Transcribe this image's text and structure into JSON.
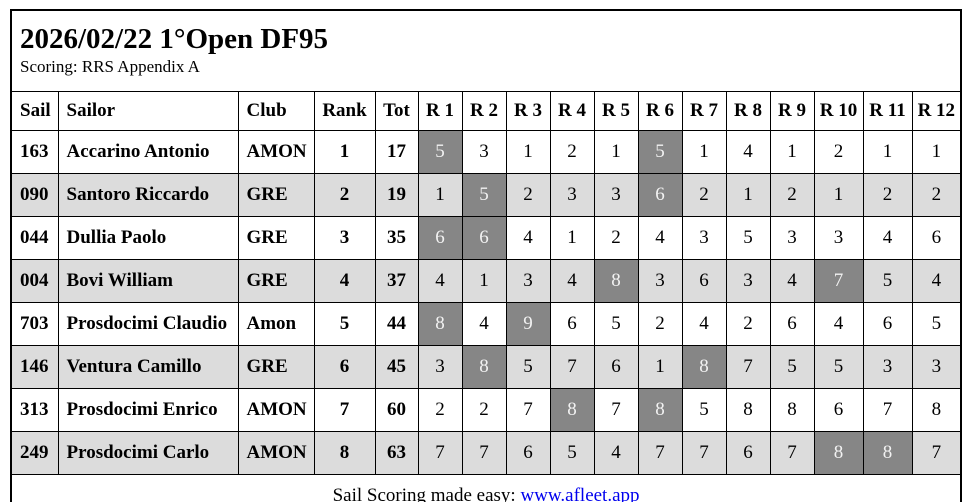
{
  "header": {
    "title": "2026/02/22 1°Open DF95",
    "subtitle": "Scoring: RRS Appendix A"
  },
  "table": {
    "columns": [
      "Sail",
      "Sailor",
      "Club",
      "Rank",
      "Tot",
      "R 1",
      "R 2",
      "R 3",
      "R 4",
      "R 5",
      "R 6",
      "R 7",
      "R 8",
      "R 9",
      "R 10",
      "R 11",
      "R 12"
    ],
    "rows": [
      {
        "sail": "163",
        "sailor": "Accarino Antonio",
        "club": "AMON",
        "rank": "1",
        "tot": "17",
        "scores": [
          5,
          3,
          1,
          2,
          1,
          5,
          1,
          4,
          1,
          2,
          1,
          1
        ],
        "discard_indices": [
          0,
          5
        ]
      },
      {
        "sail": "090",
        "sailor": "Santoro Riccardo",
        "club": "GRE",
        "rank": "2",
        "tot": "19",
        "scores": [
          1,
          5,
          2,
          3,
          3,
          6,
          2,
          1,
          2,
          1,
          2,
          2
        ],
        "discard_indices": [
          1,
          5
        ]
      },
      {
        "sail": "044",
        "sailor": "Dullia Paolo",
        "club": "GRE",
        "rank": "3",
        "tot": "35",
        "scores": [
          6,
          6,
          4,
          1,
          2,
          4,
          3,
          5,
          3,
          3,
          4,
          6
        ],
        "discard_indices": [
          0,
          1
        ]
      },
      {
        "sail": "004",
        "sailor": "Bovi William",
        "club": "GRE",
        "rank": "4",
        "tot": "37",
        "scores": [
          4,
          1,
          3,
          4,
          8,
          3,
          6,
          3,
          4,
          7,
          5,
          4
        ],
        "discard_indices": [
          4,
          9
        ]
      },
      {
        "sail": "703",
        "sailor": "Prosdocimi Claudio",
        "club": "Amon",
        "rank": "5",
        "tot": "44",
        "scores": [
          8,
          4,
          9,
          6,
          5,
          2,
          4,
          2,
          6,
          4,
          6,
          5
        ],
        "discard_indices": [
          0,
          2
        ]
      },
      {
        "sail": "146",
        "sailor": "Ventura Camillo",
        "club": "GRE",
        "rank": "6",
        "tot": "45",
        "scores": [
          3,
          8,
          5,
          7,
          6,
          1,
          8,
          7,
          5,
          5,
          3,
          3
        ],
        "discard_indices": [
          1,
          6
        ]
      },
      {
        "sail": "313",
        "sailor": "Prosdocimi Enrico",
        "club": "AMON",
        "rank": "7",
        "tot": "60",
        "scores": [
          2,
          2,
          7,
          8,
          7,
          8,
          5,
          8,
          8,
          6,
          7,
          8
        ],
        "discard_indices": [
          3,
          5
        ]
      },
      {
        "sail": "249",
        "sailor": "Prosdocimi Carlo",
        "club": "AMON",
        "rank": "8",
        "tot": "63",
        "scores": [
          7,
          7,
          6,
          5,
          4,
          7,
          7,
          6,
          7,
          8,
          8,
          7
        ],
        "discard_indices": [
          9,
          10
        ]
      }
    ]
  },
  "footer": {
    "text": "Sail Scoring made easy: ",
    "link_label": "www.afleet.app"
  },
  "colors": {
    "row_alt_bg": "#dcdcdc",
    "discard_bg": "#868686",
    "discard_fg": "#f2f2f2",
    "link_color": "#0000ee",
    "border": "#000000"
  }
}
